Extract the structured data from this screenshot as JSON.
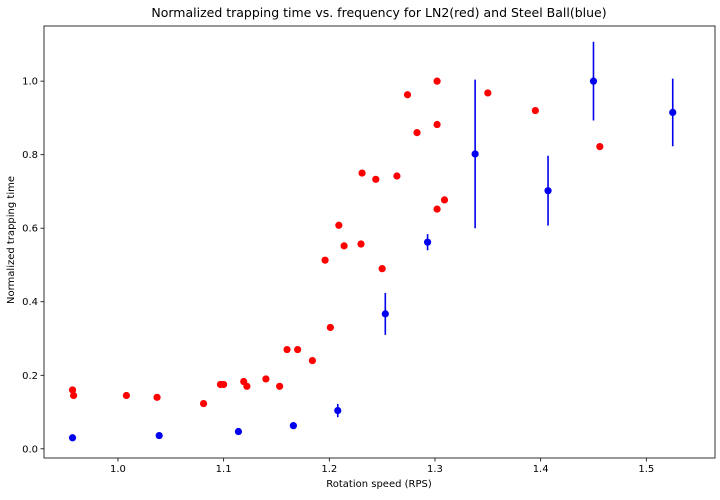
{
  "chart_data": {
    "type": "scatter",
    "title": "Normalized trapping time vs. frequency  for LN2(red) and Steel Ball(blue)",
    "xlabel": "Rotation speed (RPS)",
    "ylabel": "Normalized trapping time",
    "xlim": [
      0.93,
      1.565
    ],
    "ylim": [
      -0.025,
      1.15
    ],
    "xticks": [
      1.0,
      1.1,
      1.2,
      1.3,
      1.4,
      1.5
    ],
    "xtick_labels": [
      "1.0",
      "1.1",
      "1.2",
      "1.3",
      "1.4",
      "1.5"
    ],
    "yticks": [
      0.0,
      0.2,
      0.4,
      0.6,
      0.8,
      1.0
    ],
    "ytick_labels": [
      "0.0",
      "0.2",
      "0.4",
      "0.6",
      "0.8",
      "1.0"
    ],
    "grid": false,
    "series": [
      {
        "color": "#ff0000",
        "points": [
          {
            "x": 0.957,
            "y": 0.16
          },
          {
            "x": 0.958,
            "y": 0.145
          },
          {
            "x": 1.008,
            "y": 0.145
          },
          {
            "x": 1.037,
            "y": 0.14
          },
          {
            "x": 1.081,
            "y": 0.123
          },
          {
            "x": 1.097,
            "y": 0.175
          },
          {
            "x": 1.1,
            "y": 0.175
          },
          {
            "x": 1.119,
            "y": 0.183
          },
          {
            "x": 1.122,
            "y": 0.17
          },
          {
            "x": 1.14,
            "y": 0.19
          },
          {
            "x": 1.153,
            "y": 0.17
          },
          {
            "x": 1.16,
            "y": 0.27
          },
          {
            "x": 1.17,
            "y": 0.27
          },
          {
            "x": 1.184,
            "y": 0.24
          },
          {
            "x": 1.196,
            "y": 0.513
          },
          {
            "x": 1.201,
            "y": 0.33
          },
          {
            "x": 1.209,
            "y": 0.608
          },
          {
            "x": 1.214,
            "y": 0.552
          },
          {
            "x": 1.23,
            "y": 0.557
          },
          {
            "x": 1.231,
            "y": 0.75
          },
          {
            "x": 1.244,
            "y": 0.733
          },
          {
            "x": 1.25,
            "y": 0.49
          },
          {
            "x": 1.264,
            "y": 0.742
          },
          {
            "x": 1.274,
            "y": 0.963
          },
          {
            "x": 1.283,
            "y": 0.86
          },
          {
            "x": 1.302,
            "y": 0.882
          },
          {
            "x": 1.302,
            "y": 1.0
          },
          {
            "x": 1.302,
            "y": 0.652
          },
          {
            "x": 1.309,
            "y": 0.677
          },
          {
            "x": 1.35,
            "y": 0.968
          },
          {
            "x": 1.395,
            "y": 0.92
          },
          {
            "x": 1.456,
            "y": 0.822
          }
        ]
      },
      {
        "color": "#0000ee",
        "points": [
          {
            "x": 0.957,
            "y": 0.03,
            "err": 0.0
          },
          {
            "x": 1.039,
            "y": 0.036,
            "err": 0.0
          },
          {
            "x": 1.114,
            "y": 0.047,
            "err": 0.0
          },
          {
            "x": 1.166,
            "y": 0.063,
            "err": 0.0
          },
          {
            "x": 1.208,
            "y": 0.104,
            "err": 0.018
          },
          {
            "x": 1.253,
            "y": 0.367,
            "err": 0.057
          },
          {
            "x": 1.293,
            "y": 0.562,
            "err": 0.022
          },
          {
            "x": 1.338,
            "y": 0.802,
            "err": 0.202
          },
          {
            "x": 1.407,
            "y": 0.702,
            "err": 0.095
          },
          {
            "x": 1.45,
            "y": 1.0,
            "err": 0.107
          },
          {
            "x": 1.525,
            "y": 0.915,
            "err": 0.092
          }
        ]
      }
    ]
  }
}
